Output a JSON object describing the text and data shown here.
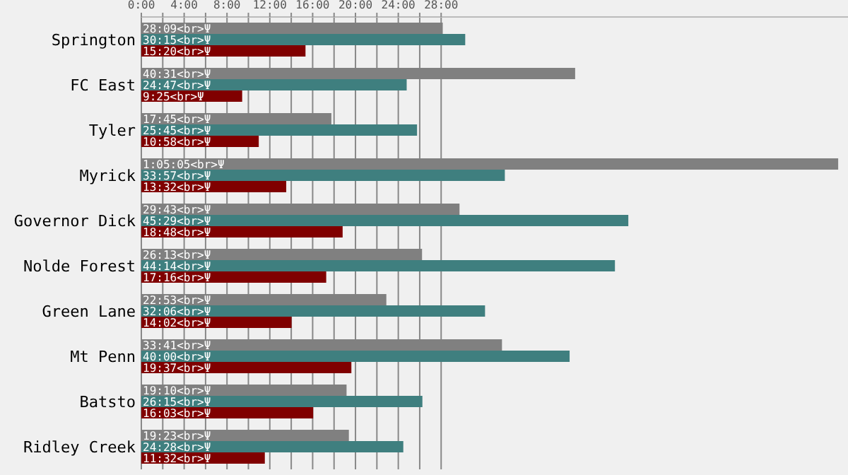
{
  "chart_data": {
    "type": "bar",
    "orientation": "horizontal",
    "categories": [
      "Springton",
      "FC East",
      "Tyler",
      "Myrick",
      "Governor Dick",
      "Nolde Forest",
      "Green Lane",
      "Mt Penn",
      "Batsto",
      "Ridley Creek"
    ],
    "series": [
      {
        "color": "#808080",
        "values": [
          28.15,
          40.517,
          17.75,
          65.083,
          29.717,
          26.217,
          22.883,
          33.683,
          19.167,
          19.383
        ],
        "value_labels": [
          "28:09<br>Ψ",
          "40:31<br>Ψ",
          "17:45<br>Ψ",
          "1:05:05<br>Ψ",
          "29:43<br>Ψ",
          "26:13<br>Ψ",
          "22:53<br>Ψ",
          "33:41<br>Ψ",
          "19:10<br>Ψ",
          "19:23<br>Ψ"
        ]
      },
      {
        "color": "#3f7f7f",
        "values": [
          30.25,
          24.783,
          25.75,
          33.95,
          45.483,
          44.233,
          32.1,
          40.0,
          26.25,
          24.467
        ],
        "value_labels": [
          "30:15<br>Ψ",
          "24:47<br>Ψ",
          "25:45<br>Ψ",
          "33:57<br>Ψ",
          "45:29<br>Ψ",
          "44:14<br>Ψ",
          "32:06<br>Ψ",
          "40:00<br>Ψ",
          "26:15<br>Ψ",
          "24:28<br>Ψ"
        ]
      },
      {
        "color": "#800000",
        "values": [
          15.333,
          9.417,
          10.967,
          13.533,
          18.8,
          17.267,
          14.033,
          19.617,
          16.05,
          11.533
        ],
        "value_labels": [
          "15:20<br>Ψ",
          "9:25<br>Ψ",
          "10:58<br>Ψ",
          "13:32<br>Ψ",
          "18:48<br>Ψ",
          "17:16<br>Ψ",
          "14:02<br>Ψ",
          "19:37<br>Ψ",
          "16:03<br>Ψ",
          "11:32<br>Ψ"
        ]
      }
    ],
    "xlim": [
      0,
      66
    ],
    "xticks": [
      {
        "value": 0,
        "label": "0:00"
      },
      {
        "value": 2,
        "label": null
      },
      {
        "value": 4,
        "label": "4:00"
      },
      {
        "value": 6,
        "label": null
      },
      {
        "value": 8,
        "label": "8:00"
      },
      {
        "value": 10,
        "label": null
      },
      {
        "value": 12,
        "label": "12:00"
      },
      {
        "value": 14,
        "label": null
      },
      {
        "value": 16,
        "label": "16:00"
      },
      {
        "value": 18,
        "label": null
      },
      {
        "value": 20,
        "label": "20:00"
      },
      {
        "value": 22,
        "label": null
      },
      {
        "value": 24,
        "label": "24:00"
      },
      {
        "value": 26,
        "label": null
      },
      {
        "value": 28,
        "label": "28:00"
      }
    ],
    "grid": "x"
  }
}
